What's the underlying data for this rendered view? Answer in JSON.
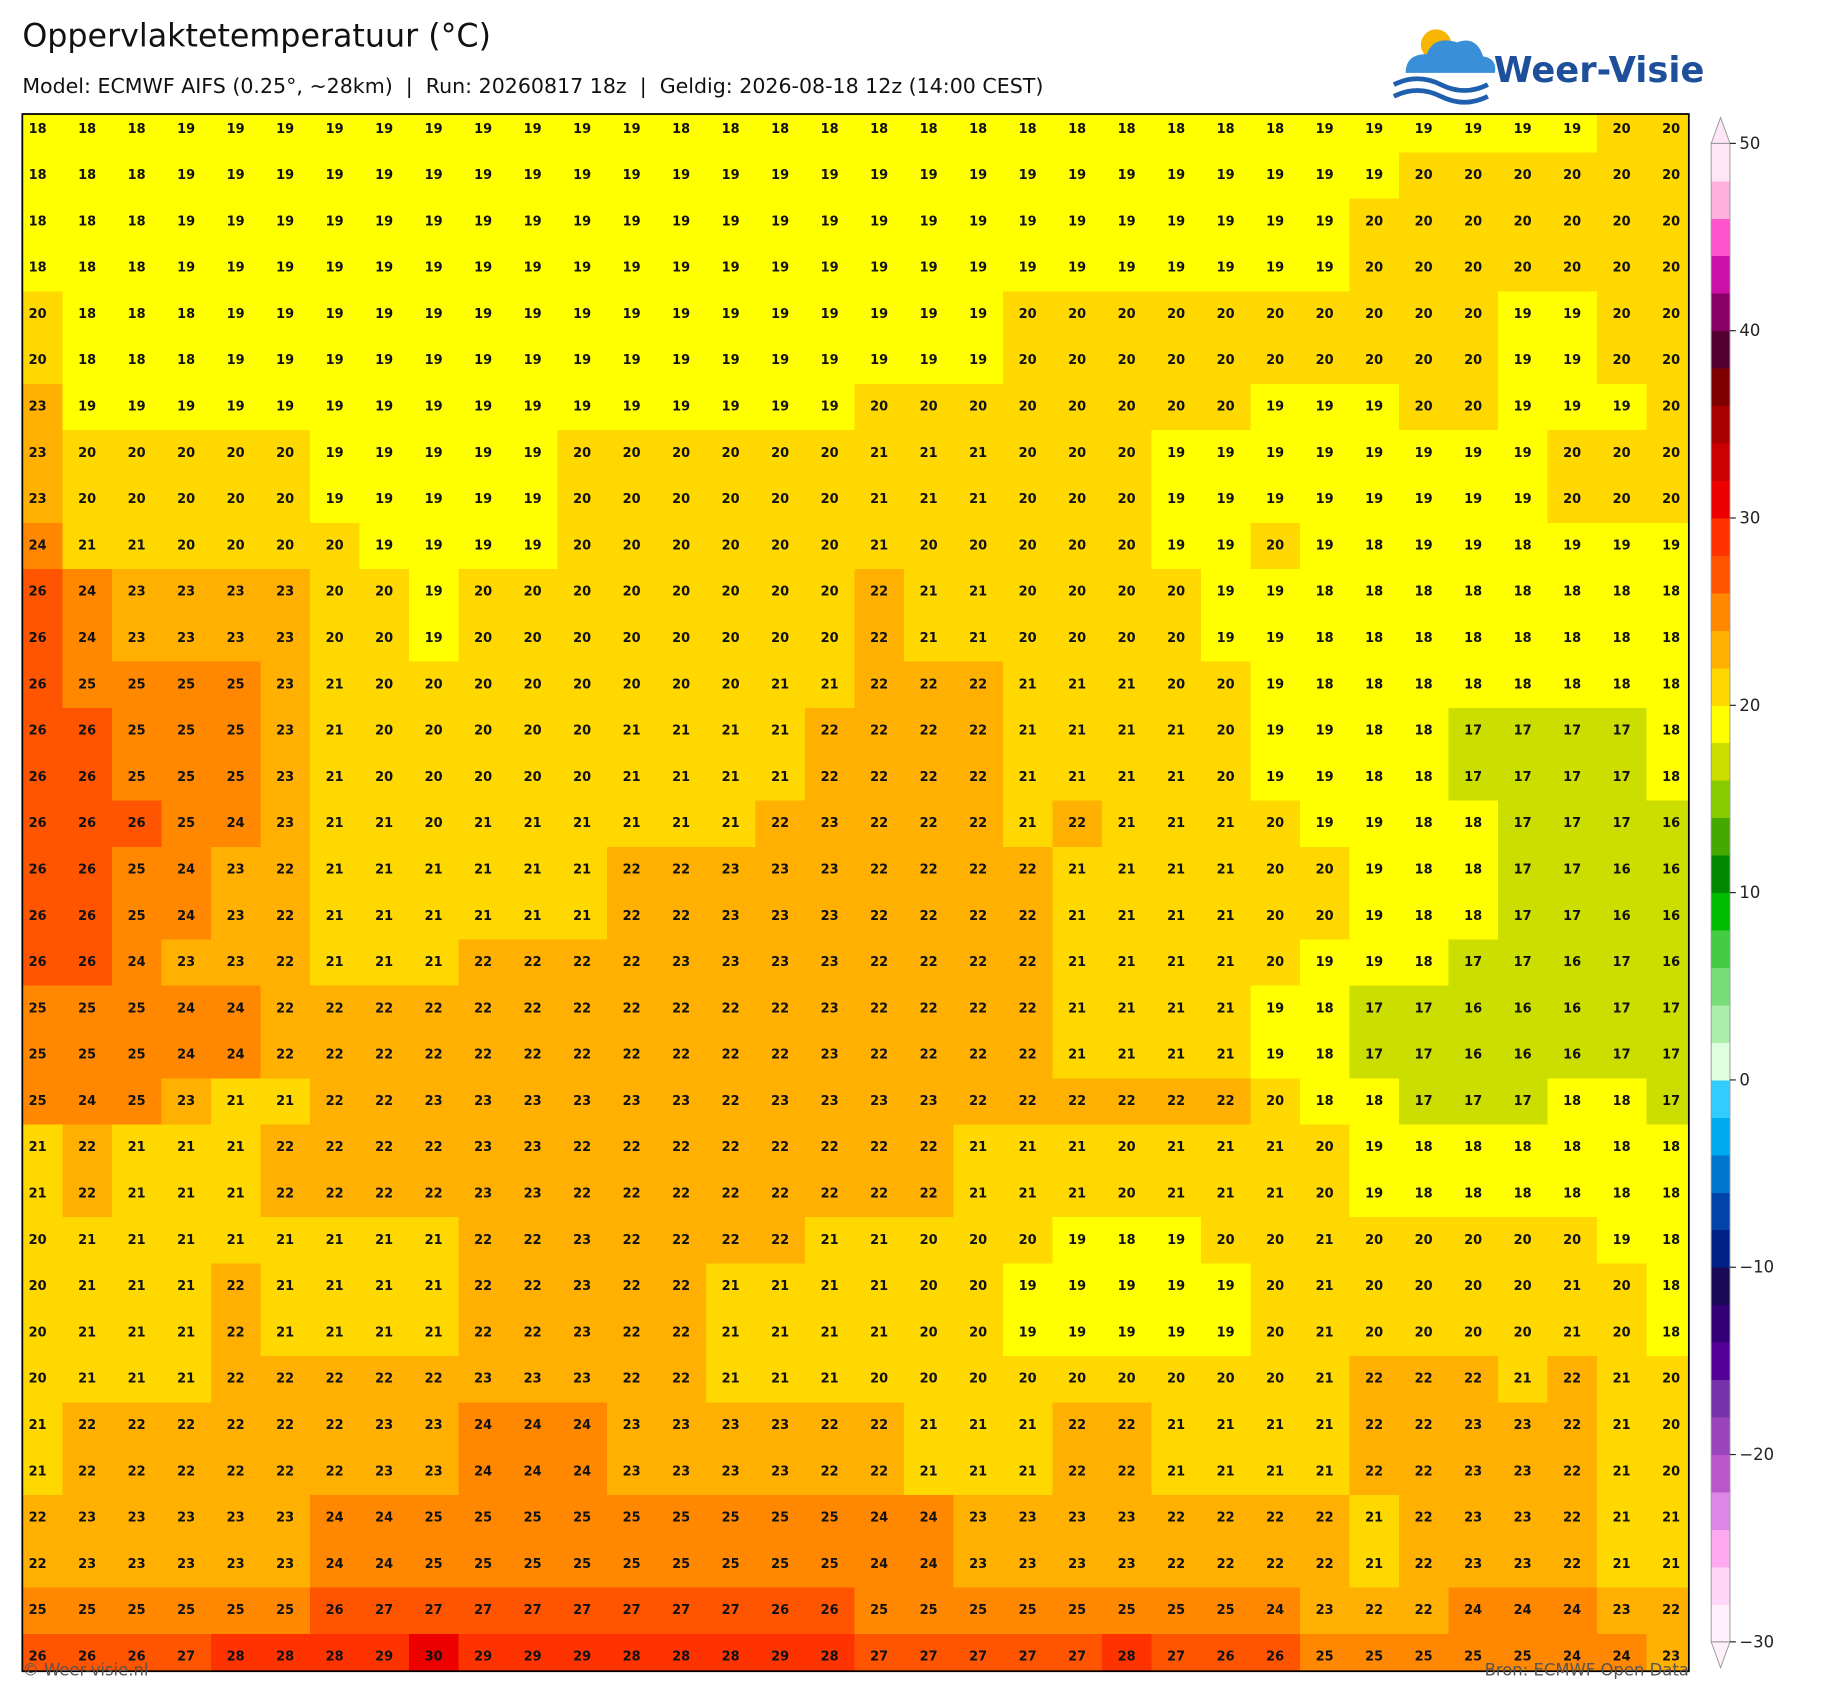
{
  "header": {
    "title": "Oppervlaktetemperatuur (°C)",
    "subtitle": "Model: ECMWF AIFS (0.25°, ~28km)  |  Run: 20260817 18z  |  Geldig: 2026-08-18 12z (14:00 CEST)",
    "logo": "Weer-Visie"
  },
  "map": {
    "values": [
      [
        18,
        18,
        18,
        19,
        19,
        19,
        19,
        19,
        19,
        19,
        19,
        19,
        19,
        18,
        18,
        18,
        18,
        18,
        18,
        18,
        18,
        18,
        18,
        18,
        18,
        18,
        19,
        19,
        19,
        19,
        19,
        19,
        20,
        20
      ],
      [
        18,
        18,
        18,
        19,
        19,
        19,
        19,
        19,
        19,
        19,
        19,
        19,
        19,
        19,
        19,
        19,
        19,
        19,
        19,
        19,
        19,
        19,
        19,
        19,
        19,
        19,
        19,
        19,
        20,
        20,
        20,
        20,
        20,
        20
      ],
      [
        18,
        18,
        18,
        19,
        19,
        19,
        19,
        19,
        19,
        19,
        19,
        19,
        19,
        19,
        19,
        19,
        19,
        19,
        19,
        19,
        19,
        19,
        19,
        19,
        19,
        19,
        19,
        20,
        20,
        20,
        20,
        20,
        20,
        20
      ],
      [
        18,
        18,
        18,
        19,
        19,
        19,
        19,
        19,
        19,
        19,
        19,
        19,
        19,
        19,
        19,
        19,
        19,
        19,
        19,
        19,
        19,
        19,
        19,
        19,
        19,
        19,
        19,
        20,
        20,
        20,
        20,
        20,
        20,
        20
      ],
      [
        20,
        18,
        18,
        18,
        19,
        19,
        19,
        19,
        19,
        19,
        19,
        19,
        19,
        19,
        19,
        19,
        19,
        19,
        19,
        19,
        20,
        20,
        20,
        20,
        20,
        20,
        20,
        20,
        20,
        20,
        19,
        19,
        20,
        20
      ],
      [
        20,
        18,
        18,
        18,
        19,
        19,
        19,
        19,
        19,
        19,
        19,
        19,
        19,
        19,
        19,
        19,
        19,
        19,
        19,
        19,
        20,
        20,
        20,
        20,
        20,
        20,
        20,
        20,
        20,
        20,
        19,
        19,
        20,
        20
      ],
      [
        23,
        19,
        19,
        19,
        19,
        19,
        19,
        19,
        19,
        19,
        19,
        19,
        19,
        19,
        19,
        19,
        19,
        20,
        20,
        20,
        20,
        20,
        20,
        20,
        20,
        19,
        19,
        19,
        20,
        20,
        19,
        19,
        19,
        20
      ],
      [
        23,
        20,
        20,
        20,
        20,
        20,
        19,
        19,
        19,
        19,
        19,
        20,
        20,
        20,
        20,
        20,
        20,
        21,
        21,
        21,
        20,
        20,
        20,
        19,
        19,
        19,
        19,
        19,
        19,
        19,
        19,
        20,
        20,
        20
      ],
      [
        23,
        20,
        20,
        20,
        20,
        20,
        19,
        19,
        19,
        19,
        19,
        20,
        20,
        20,
        20,
        20,
        20,
        21,
        21,
        21,
        20,
        20,
        20,
        19,
        19,
        19,
        19,
        19,
        19,
        19,
        19,
        20,
        20,
        20
      ],
      [
        24,
        21,
        21,
        20,
        20,
        20,
        20,
        19,
        19,
        19,
        19,
        20,
        20,
        20,
        20,
        20,
        20,
        21,
        20,
        20,
        20,
        20,
        20,
        19,
        19,
        20,
        19,
        18,
        19,
        19,
        18,
        19,
        19,
        19
      ],
      [
        26,
        24,
        23,
        23,
        23,
        23,
        20,
        20,
        19,
        20,
        20,
        20,
        20,
        20,
        20,
        20,
        20,
        22,
        21,
        21,
        20,
        20,
        20,
        20,
        19,
        19,
        18,
        18,
        18,
        18,
        18,
        18,
        18,
        18
      ],
      [
        26,
        24,
        23,
        23,
        23,
        23,
        20,
        20,
        19,
        20,
        20,
        20,
        20,
        20,
        20,
        20,
        20,
        22,
        21,
        21,
        20,
        20,
        20,
        20,
        19,
        19,
        18,
        18,
        18,
        18,
        18,
        18,
        18,
        18
      ],
      [
        26,
        25,
        25,
        25,
        25,
        23,
        21,
        20,
        20,
        20,
        20,
        20,
        20,
        20,
        20,
        21,
        21,
        22,
        22,
        22,
        21,
        21,
        21,
        20,
        20,
        19,
        18,
        18,
        18,
        18,
        18,
        18,
        18,
        18
      ],
      [
        26,
        26,
        25,
        25,
        25,
        23,
        21,
        20,
        20,
        20,
        20,
        20,
        21,
        21,
        21,
        21,
        22,
        22,
        22,
        22,
        21,
        21,
        21,
        21,
        20,
        19,
        19,
        18,
        18,
        17,
        17,
        17,
        17,
        18
      ],
      [
        26,
        26,
        25,
        25,
        25,
        23,
        21,
        20,
        20,
        20,
        20,
        20,
        21,
        21,
        21,
        21,
        22,
        22,
        22,
        22,
        21,
        21,
        21,
        21,
        20,
        19,
        19,
        18,
        18,
        17,
        17,
        17,
        17,
        18
      ],
      [
        26,
        26,
        26,
        25,
        24,
        23,
        21,
        21,
        20,
        21,
        21,
        21,
        21,
        21,
        21,
        22,
        23,
        22,
        22,
        22,
        21,
        22,
        21,
        21,
        21,
        20,
        19,
        19,
        18,
        18,
        17,
        17,
        17,
        16
      ],
      [
        26,
        26,
        25,
        24,
        23,
        22,
        21,
        21,
        21,
        21,
        21,
        21,
        22,
        22,
        23,
        23,
        23,
        22,
        22,
        22,
        22,
        21,
        21,
        21,
        21,
        20,
        20,
        19,
        18,
        18,
        17,
        17,
        16,
        16
      ],
      [
        26,
        26,
        25,
        24,
        23,
        22,
        21,
        21,
        21,
        21,
        21,
        21,
        22,
        22,
        23,
        23,
        23,
        22,
        22,
        22,
        22,
        21,
        21,
        21,
        21,
        20,
        20,
        19,
        18,
        18,
        17,
        17,
        16,
        16
      ],
      [
        26,
        26,
        24,
        23,
        23,
        22,
        21,
        21,
        21,
        22,
        22,
        22,
        22,
        23,
        23,
        23,
        23,
        22,
        22,
        22,
        22,
        21,
        21,
        21,
        21,
        20,
        19,
        19,
        18,
        17,
        17,
        16,
        17,
        16
      ],
      [
        25,
        25,
        25,
        24,
        24,
        22,
        22,
        22,
        22,
        22,
        22,
        22,
        22,
        22,
        22,
        22,
        23,
        22,
        22,
        22,
        22,
        21,
        21,
        21,
        21,
        19,
        18,
        17,
        17,
        16,
        16,
        16,
        17,
        17
      ],
      [
        25,
        25,
        25,
        24,
        24,
        22,
        22,
        22,
        22,
        22,
        22,
        22,
        22,
        22,
        22,
        22,
        23,
        22,
        22,
        22,
        22,
        21,
        21,
        21,
        21,
        19,
        18,
        17,
        17,
        16,
        16,
        16,
        17,
        17
      ],
      [
        25,
        24,
        25,
        23,
        21,
        21,
        22,
        22,
        23,
        23,
        23,
        23,
        23,
        23,
        22,
        23,
        23,
        23,
        23,
        22,
        22,
        22,
        22,
        22,
        22,
        20,
        18,
        18,
        17,
        17,
        17,
        18,
        18,
        17
      ],
      [
        21,
        22,
        21,
        21,
        21,
        22,
        22,
        22,
        22,
        23,
        23,
        22,
        22,
        22,
        22,
        22,
        22,
        22,
        22,
        21,
        21,
        21,
        20,
        21,
        21,
        21,
        20,
        19,
        18,
        18,
        18,
        18,
        18,
        18
      ],
      [
        21,
        22,
        21,
        21,
        21,
        22,
        22,
        22,
        22,
        23,
        23,
        22,
        22,
        22,
        22,
        22,
        22,
        22,
        22,
        21,
        21,
        21,
        20,
        21,
        21,
        21,
        20,
        19,
        18,
        18,
        18,
        18,
        18,
        18
      ],
      [
        20,
        21,
        21,
        21,
        21,
        21,
        21,
        21,
        21,
        22,
        22,
        23,
        22,
        22,
        22,
        22,
        21,
        21,
        20,
        20,
        20,
        19,
        18,
        19,
        20,
        20,
        21,
        20,
        20,
        20,
        20,
        20,
        19,
        18
      ],
      [
        20,
        21,
        21,
        21,
        22,
        21,
        21,
        21,
        21,
        22,
        22,
        23,
        22,
        22,
        21,
        21,
        21,
        21,
        20,
        20,
        19,
        19,
        19,
        19,
        19,
        20,
        21,
        20,
        20,
        20,
        20,
        21,
        20,
        18
      ],
      [
        20,
        21,
        21,
        21,
        22,
        21,
        21,
        21,
        21,
        22,
        22,
        23,
        22,
        22,
        21,
        21,
        21,
        21,
        20,
        20,
        19,
        19,
        19,
        19,
        19,
        20,
        21,
        20,
        20,
        20,
        20,
        21,
        20,
        18
      ],
      [
        20,
        21,
        21,
        21,
        22,
        22,
        22,
        22,
        22,
        23,
        23,
        23,
        22,
        22,
        21,
        21,
        21,
        20,
        20,
        20,
        20,
        20,
        20,
        20,
        20,
        20,
        21,
        22,
        22,
        22,
        21,
        22,
        21,
        20
      ],
      [
        21,
        22,
        22,
        22,
        22,
        22,
        22,
        23,
        23,
        24,
        24,
        24,
        23,
        23,
        23,
        23,
        22,
        22,
        21,
        21,
        21,
        22,
        22,
        21,
        21,
        21,
        21,
        22,
        22,
        23,
        23,
        22,
        21,
        20
      ],
      [
        21,
        22,
        22,
        22,
        22,
        22,
        22,
        23,
        23,
        24,
        24,
        24,
        23,
        23,
        23,
        23,
        22,
        22,
        21,
        21,
        21,
        22,
        22,
        21,
        21,
        21,
        21,
        22,
        22,
        23,
        23,
        22,
        21,
        20
      ],
      [
        22,
        23,
        23,
        23,
        23,
        23,
        24,
        24,
        25,
        25,
        25,
        25,
        25,
        25,
        25,
        25,
        25,
        24,
        24,
        23,
        23,
        23,
        23,
        22,
        22,
        22,
        22,
        21,
        22,
        23,
        23,
        22,
        21,
        21
      ],
      [
        22,
        23,
        23,
        23,
        23,
        23,
        24,
        24,
        25,
        25,
        25,
        25,
        25,
        25,
        25,
        25,
        25,
        24,
        24,
        23,
        23,
        23,
        23,
        22,
        22,
        22,
        22,
        21,
        22,
        23,
        23,
        22,
        21,
        21
      ],
      [
        25,
        25,
        25,
        25,
        25,
        25,
        26,
        27,
        27,
        27,
        27,
        27,
        27,
        27,
        27,
        26,
        26,
        25,
        25,
        25,
        25,
        25,
        25,
        25,
        25,
        24,
        23,
        22,
        22,
        24,
        24,
        24,
        23,
        22
      ],
      [
        26,
        26,
        26,
        27,
        28,
        28,
        28,
        29,
        30,
        29,
        29,
        29,
        28,
        28,
        28,
        29,
        28,
        27,
        27,
        27,
        27,
        27,
        28,
        27,
        26,
        26,
        25,
        25,
        25,
        25,
        25,
        24,
        24,
        23
      ]
    ]
  },
  "colorbar": {
    "lim": [
      -30,
      50
    ],
    "ticks": [
      {
        "value": -30,
        "label": "−30"
      },
      {
        "value": -20,
        "label": "−20"
      },
      {
        "value": -10,
        "label": "−10"
      },
      0,
      10,
      20,
      30,
      40,
      50
    ],
    "colors": [
      "#fff0fc",
      "#ffd5f8",
      "#ffaaf0",
      "#dd88e6",
      "#bb55cc",
      "#9944bb",
      "#7733aa",
      "#550099",
      "#330077",
      "#1a0a55",
      "#002288",
      "#0044aa",
      "#0077cc",
      "#00aaee",
      "#33ccff",
      "#ddffdd",
      "#aaeeaa",
      "#77dd77",
      "#44cc44",
      "#00bb00",
      "#008800",
      "#44aa00",
      "#88cc00",
      "#ccdd00",
      "#ffff00",
      "#ffd800",
      "#ffb000",
      "#ff8800",
      "#ff5500",
      "#ff3300",
      "#ee0000",
      "#cc0000",
      "#aa0000",
      "#800000",
      "#550033",
      "#880066",
      "#cc11aa",
      "#ff55cc",
      "#ffb0dd",
      "#ffe6f7"
    ]
  },
  "footer": {
    "credit": "© Weer-visie.nl",
    "source": "Bron: ECMWF Open Data"
  }
}
